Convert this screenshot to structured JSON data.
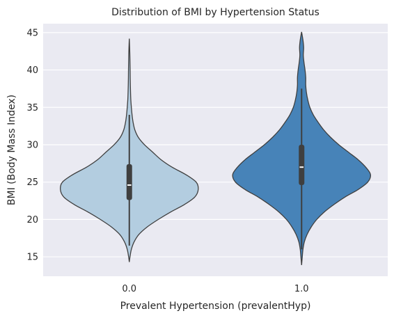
{
  "chart_data": {
    "type": "violin",
    "title": "Distribution of BMI by Hypertension Status",
    "xlabel": "Prevalent Hypertension (prevalentHyp)",
    "ylabel": "BMI (Body Mass Index)",
    "categories": [
      "0.0",
      "1.0"
    ],
    "ylim": [
      12.4,
      46.2
    ],
    "yticks": [
      15,
      20,
      25,
      30,
      35,
      40,
      45
    ],
    "grid": true,
    "colors": {
      "background": "#eaeaf2",
      "grid": "#ffffff",
      "violin_0": "#b3cde0",
      "violin_1": "#4783b8",
      "edge": "#3f3f3f",
      "median": "#ffffff"
    },
    "series": [
      {
        "category": "0.0",
        "color": "#b3cde0",
        "min": 14.3,
        "max": 44.2,
        "whisker_low": 16.5,
        "q1": 22.6,
        "median": 24.6,
        "q3": 27.4,
        "whisker_high": 34.0,
        "density": [
          [
            14.3,
            0.0
          ],
          [
            15.0,
            0.01
          ],
          [
            16.0,
            0.03
          ],
          [
            17.0,
            0.07
          ],
          [
            18.0,
            0.14
          ],
          [
            19.0,
            0.26
          ],
          [
            20.0,
            0.42
          ],
          [
            21.0,
            0.6
          ],
          [
            22.0,
            0.8
          ],
          [
            23.0,
            0.95
          ],
          [
            24.0,
            1.0
          ],
          [
            25.0,
            0.97
          ],
          [
            26.0,
            0.82
          ],
          [
            27.0,
            0.62
          ],
          [
            28.0,
            0.46
          ],
          [
            29.0,
            0.34
          ],
          [
            30.0,
            0.22
          ],
          [
            31.0,
            0.13
          ],
          [
            32.0,
            0.08
          ],
          [
            33.0,
            0.055
          ],
          [
            34.0,
            0.04
          ],
          [
            35.0,
            0.03
          ],
          [
            36.0,
            0.022
          ],
          [
            37.0,
            0.018
          ],
          [
            38.0,
            0.015
          ],
          [
            39.0,
            0.013
          ],
          [
            40.0,
            0.012
          ],
          [
            41.0,
            0.01
          ],
          [
            42.0,
            0.008
          ],
          [
            43.0,
            0.005
          ],
          [
            44.2,
            0.0
          ]
        ]
      },
      {
        "category": "1.0",
        "color": "#4783b8",
        "min": 13.9,
        "max": 45.1,
        "whisker_low": 16.0,
        "q1": 24.6,
        "median": 27.0,
        "q3": 30.0,
        "whisker_high": 37.5,
        "density": [
          [
            13.9,
            0.0
          ],
          [
            15.0,
            0.01
          ],
          [
            16.0,
            0.02
          ],
          [
            17.0,
            0.04
          ],
          [
            18.0,
            0.08
          ],
          [
            19.0,
            0.14
          ],
          [
            20.0,
            0.22
          ],
          [
            21.0,
            0.33
          ],
          [
            22.0,
            0.47
          ],
          [
            23.0,
            0.63
          ],
          [
            24.0,
            0.82
          ],
          [
            25.0,
            0.96
          ],
          [
            26.0,
            1.0
          ],
          [
            27.0,
            0.93
          ],
          [
            28.0,
            0.82
          ],
          [
            29.0,
            0.68
          ],
          [
            30.0,
            0.54
          ],
          [
            31.0,
            0.42
          ],
          [
            32.0,
            0.32
          ],
          [
            33.0,
            0.24
          ],
          [
            34.0,
            0.17
          ],
          [
            35.0,
            0.12
          ],
          [
            36.0,
            0.09
          ],
          [
            37.0,
            0.07
          ],
          [
            38.0,
            0.06
          ],
          [
            39.0,
            0.06
          ],
          [
            40.0,
            0.05
          ],
          [
            41.0,
            0.035
          ],
          [
            42.0,
            0.025
          ],
          [
            43.0,
            0.03
          ],
          [
            44.0,
            0.02
          ],
          [
            45.1,
            0.0
          ]
        ]
      }
    ]
  }
}
